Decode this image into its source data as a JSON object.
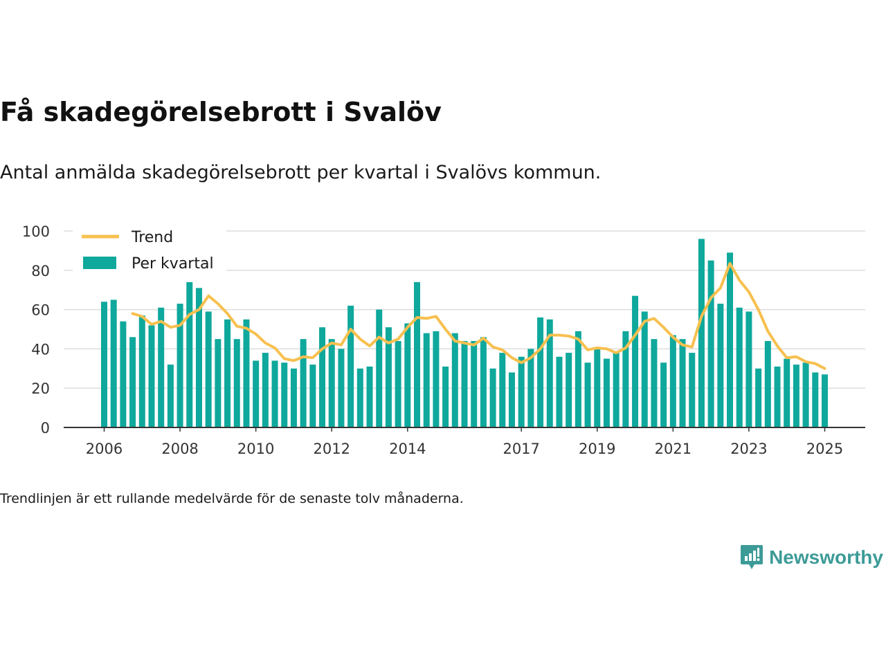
{
  "title": "Få skadegörelsebrott i Svalöv",
  "subtitle": "Antal anmälda skadegörelsebrott per kvartal i Svalövs kommun.",
  "note": "Trendlinjen är ett rullande medelvärde för de senaste tolv månaderna.",
  "brand": {
    "name": "Newsworthy",
    "icon": "newsworthy-chart-bubble-icon"
  },
  "colors": {
    "bar": "#0fa89c",
    "trend": "#f7c04f",
    "grid": "#dddddd",
    "axis": "#333333",
    "brand": "#3d9b97"
  },
  "chart_data": {
    "type": "bar",
    "x_start": "2006 Q1",
    "x_end": "2025 Q1",
    "ylim": [
      0,
      100
    ],
    "y_ticks": [
      0,
      20,
      40,
      60,
      80,
      100
    ],
    "x_ticks": [
      "2006",
      "2008",
      "2010",
      "2012",
      "2014",
      "2017",
      "2019",
      "2021",
      "2023",
      "2025"
    ],
    "grid": true,
    "legend_placement": "top-left",
    "series": [
      {
        "name": "Per kvartal",
        "kind": "bar",
        "values": [
          64,
          65,
          54,
          46,
          57,
          52,
          61,
          32,
          63,
          74,
          71,
          59,
          45,
          55,
          45,
          55,
          34,
          38,
          34,
          33,
          30,
          45,
          32,
          51,
          45,
          40,
          62,
          30,
          31,
          60,
          51,
          44,
          53,
          74,
          48,
          49,
          31,
          48,
          44,
          44,
          46,
          30,
          38,
          28,
          36,
          40,
          56,
          55,
          36,
          38,
          49,
          33,
          40,
          35,
          38,
          49,
          67,
          59,
          45,
          33,
          47,
          45,
          38,
          96,
          85,
          63,
          89,
          61,
          59,
          30,
          44,
          31,
          35,
          32,
          33,
          28,
          27
        ]
      },
      {
        "name": "Trend",
        "kind": "line",
        "start_index": 3,
        "values": [
          58,
          56.5,
          52.5,
          54,
          51,
          52,
          57.5,
          60,
          67,
          63,
          58,
          51.5,
          50.5,
          47.5,
          43,
          40.5,
          35,
          34,
          36,
          35.5,
          40,
          43,
          42,
          50,
          45,
          41.5,
          46,
          43,
          45,
          51,
          56,
          55.5,
          56.5,
          50,
          44,
          43,
          42,
          45.5,
          41,
          39.5,
          35.5,
          33,
          35.5,
          40,
          47,
          47,
          46.5,
          45,
          39.5,
          40.5,
          40,
          38,
          40.5,
          47,
          54,
          55.5,
          51,
          46,
          42,
          41,
          56.5,
          66,
          71,
          83.5,
          75,
          69,
          60,
          49,
          41.5,
          35.5,
          36,
          33.5,
          32.5,
          30
        ]
      }
    ]
  }
}
